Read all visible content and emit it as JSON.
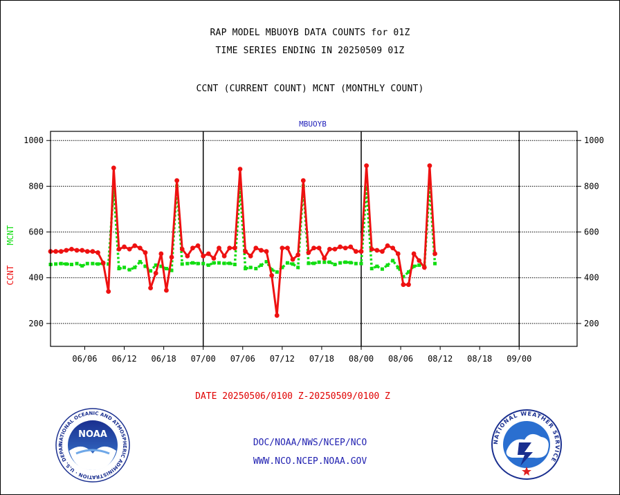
{
  "header": {
    "line1": "RAP MODEL MBUOYB DATA COUNTS for 01Z",
    "line2": "TIME SERIES ENDING IN 20250509 01Z",
    "line3": "CCNT (CURRENT COUNT) MCNT (MONTHLY COUNT)"
  },
  "footer": {
    "date_range": "DATE 20250506/0100 Z-20250509/0100 Z",
    "org_path": "DOC/NOAA/NWS/NCEP/NCO",
    "website": "WWW.NCO.NCEP.NOAA.GOV"
  },
  "logos": {
    "noaa_text": "NOAA",
    "noaa_ring": "NATIONAL OCEANIC AND ATMOSPHERIC ADMINISTRATION · U.S. DEPARTMENT OF COMMERCE ·",
    "nws_ring": "NATIONAL WEATHER SERVICE"
  },
  "colors": {
    "ccnt": "#ee1111",
    "mcnt": "#11dd11",
    "panel_title": "#2222bb",
    "grid": "#000000"
  },
  "chart_data": {
    "type": "line",
    "title": "MBUOYB",
    "ylabel_left": [
      "CCNT",
      "MCNT"
    ],
    "ylim": [
      100,
      1040
    ],
    "yticks": [
      200,
      400,
      600,
      800,
      1000
    ],
    "xticks": [
      "06/06",
      "06/12",
      "06/18",
      "07/00",
      "07/06",
      "07/12",
      "07/18",
      "08/00",
      "08/06",
      "08/12",
      "08/18",
      "09/00"
    ],
    "x_index_range": [
      0,
      100
    ],
    "xtick_index": [
      6.5,
      14,
      21.5,
      29,
      36.5,
      44,
      51.5,
      59,
      66.5,
      74,
      81.5,
      89
    ],
    "day_boundaries_index": [
      29,
      59,
      89
    ],
    "grid": true,
    "series": [
      {
        "name": "CCNT",
        "style": "solid",
        "points": [
          [
            0,
            515
          ],
          [
            1,
            515
          ],
          [
            2,
            515
          ],
          [
            3,
            520
          ],
          [
            4,
            525
          ],
          [
            5,
            520
          ],
          [
            6,
            520
          ],
          [
            7,
            515
          ],
          [
            8,
            515
          ],
          [
            9,
            510
          ],
          [
            10,
            465
          ],
          [
            11,
            340
          ],
          [
            12,
            880
          ],
          [
            13,
            525
          ],
          [
            14,
            535
          ],
          [
            15,
            525
          ],
          [
            16,
            540
          ],
          [
            17,
            530
          ],
          [
            18,
            510
          ],
          [
            19,
            355
          ],
          [
            20,
            420
          ],
          [
            21,
            505
          ],
          [
            22,
            345
          ],
          [
            23,
            490
          ],
          [
            24,
            825
          ],
          [
            25,
            525
          ],
          [
            26,
            495
          ],
          [
            27,
            530
          ],
          [
            28,
            540
          ],
          [
            29,
            495
          ],
          [
            30,
            505
          ],
          [
            31,
            485
          ],
          [
            32,
            530
          ],
          [
            33,
            495
          ],
          [
            34,
            530
          ],
          [
            35,
            530
          ],
          [
            36,
            875
          ],
          [
            37,
            515
          ],
          [
            38,
            495
          ],
          [
            39,
            530
          ],
          [
            40,
            520
          ],
          [
            41,
            515
          ],
          [
            42,
            410
          ],
          [
            43,
            235
          ],
          [
            44,
            530
          ],
          [
            45,
            530
          ],
          [
            46,
            480
          ],
          [
            47,
            500
          ],
          [
            48,
            825
          ],
          [
            49,
            510
          ],
          [
            50,
            530
          ],
          [
            51,
            530
          ],
          [
            52,
            485
          ],
          [
            53,
            525
          ],
          [
            54,
            525
          ],
          [
            55,
            535
          ],
          [
            56,
            530
          ],
          [
            57,
            535
          ],
          [
            58,
            515
          ],
          [
            59,
            515
          ],
          [
            60,
            890
          ],
          [
            61,
            525
          ],
          [
            62,
            520
          ],
          [
            63,
            515
          ],
          [
            64,
            540
          ],
          [
            65,
            530
          ],
          [
            66,
            505
          ],
          [
            67,
            370
          ],
          [
            68,
            370
          ],
          [
            69,
            505
          ],
          [
            70,
            475
          ],
          [
            71,
            445
          ],
          [
            72,
            890
          ],
          [
            73,
            505
          ]
        ]
      },
      {
        "name": "MCNT",
        "style": "dotted",
        "points": [
          [
            0,
            458
          ],
          [
            1,
            460
          ],
          [
            2,
            462
          ],
          [
            3,
            460
          ],
          [
            4,
            458
          ],
          [
            5,
            462
          ],
          [
            6,
            452
          ],
          [
            7,
            462
          ],
          [
            8,
            462
          ],
          [
            9,
            460
          ],
          [
            10,
            462
          ],
          [
            11,
            460
          ],
          [
            12,
            790
          ],
          [
            13,
            440
          ],
          [
            14,
            445
          ],
          [
            15,
            435
          ],
          [
            16,
            445
          ],
          [
            17,
            470
          ],
          [
            18,
            450
          ],
          [
            19,
            430
          ],
          [
            20,
            455
          ],
          [
            21,
            450
          ],
          [
            22,
            440
          ],
          [
            23,
            432
          ],
          [
            24,
            800
          ],
          [
            25,
            460
          ],
          [
            26,
            462
          ],
          [
            27,
            465
          ],
          [
            28,
            462
          ],
          [
            29,
            462
          ],
          [
            30,
            455
          ],
          [
            31,
            465
          ],
          [
            32,
            465
          ],
          [
            33,
            463
          ],
          [
            34,
            463
          ],
          [
            35,
            458
          ],
          [
            36,
            790
          ],
          [
            37,
            440
          ],
          [
            38,
            445
          ],
          [
            39,
            440
          ],
          [
            40,
            455
          ],
          [
            41,
            470
          ],
          [
            42,
            435
          ],
          [
            43,
            425
          ],
          [
            44,
            445
          ],
          [
            45,
            465
          ],
          [
            46,
            460
          ],
          [
            47,
            445
          ],
          [
            48,
            800
          ],
          [
            49,
            463
          ],
          [
            50,
            463
          ],
          [
            51,
            468
          ],
          [
            52,
            468
          ],
          [
            53,
            468
          ],
          [
            54,
            458
          ],
          [
            55,
            465
          ],
          [
            56,
            468
          ],
          [
            57,
            466
          ],
          [
            58,
            462
          ],
          [
            59,
            462
          ],
          [
            60,
            795
          ],
          [
            61,
            440
          ],
          [
            62,
            450
          ],
          [
            63,
            438
          ],
          [
            64,
            455
          ],
          [
            65,
            475
          ],
          [
            66,
            445
          ],
          [
            67,
            405
          ],
          [
            68,
            425
          ],
          [
            69,
            450
          ],
          [
            70,
            455
          ],
          [
            71,
            450
          ],
          [
            72,
            800
          ],
          [
            73,
            462
          ]
        ]
      }
    ]
  }
}
